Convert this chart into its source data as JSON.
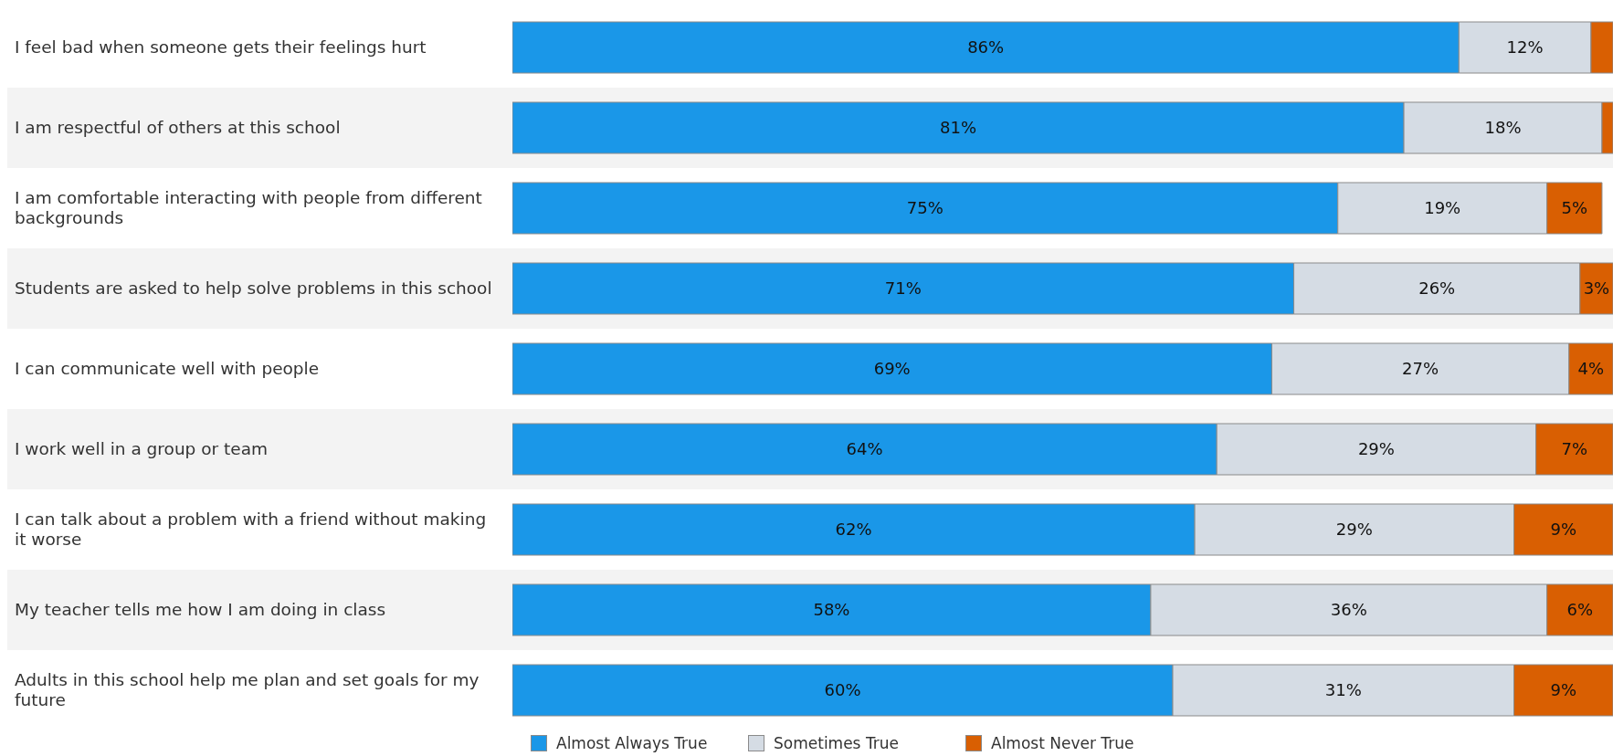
{
  "chart_data": {
    "type": "bar",
    "orientation": "horizontal",
    "stacked": true,
    "legend": "bottom",
    "categories": [
      "I feel bad when someone gets their feelings hurt",
      "I am respectful of others at this school",
      "I am comfortable interacting with people from different backgrounds",
      "Students are asked to help solve problems in this school",
      "I can communicate well with people",
      "I work well in a group or team",
      "I can talk about a problem with a friend without making it worse",
      "My teacher tells me how I am doing in class",
      "Adults in this school help me plan and set goals for my future"
    ],
    "series": [
      {
        "name": "Almost Always True",
        "color": "#1a97e8",
        "values": [
          86,
          81,
          75,
          71,
          69,
          64,
          62,
          58,
          60
        ],
        "value_labels": [
          "86%",
          "81%",
          "75%",
          "71%",
          "69%",
          "64%",
          "62%",
          "58%",
          "60%"
        ]
      },
      {
        "name": "Sometimes True",
        "color": "#d5dce4",
        "values": [
          12,
          18,
          19,
          26,
          27,
          29,
          29,
          36,
          31
        ],
        "value_labels": [
          "12%",
          "18%",
          "19%",
          "26%",
          "27%",
          "29%",
          "29%",
          "36%",
          "31%"
        ]
      },
      {
        "name": "Almost Never True",
        "color": "#d95f02",
        "values": [
          2,
          1,
          5,
          3,
          4,
          7,
          9,
          6,
          9
        ],
        "value_labels": [
          null,
          null,
          "5%",
          "3%",
          "4%",
          "7%",
          "9%",
          "6%",
          "9%"
        ]
      }
    ]
  }
}
